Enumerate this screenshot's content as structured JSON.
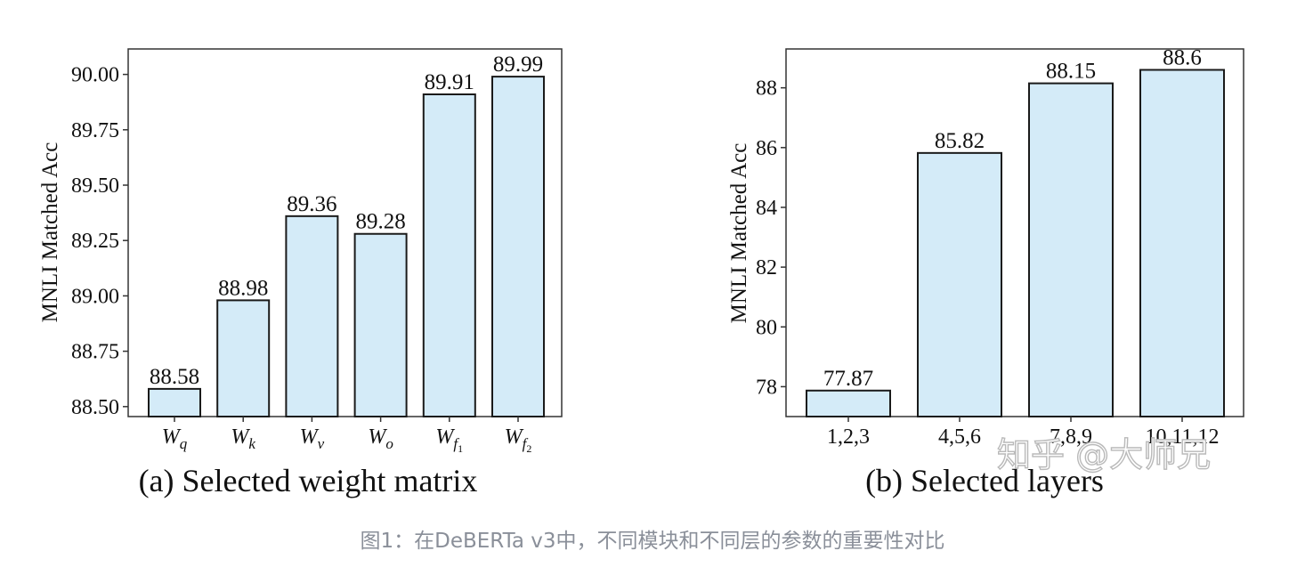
{
  "chart_data": [
    {
      "type": "bar",
      "categories": [
        "W_q",
        "W_k",
        "W_v",
        "W_o",
        "W_f1",
        "W_f2"
      ],
      "category_display": [
        {
          "base": "W",
          "sub": "q"
        },
        {
          "base": "W",
          "sub": "k"
        },
        {
          "base": "W",
          "sub": "v"
        },
        {
          "base": "W",
          "sub": "o"
        },
        {
          "base": "W",
          "sub": "f",
          "subsub": "1"
        },
        {
          "base": "W",
          "sub": "f",
          "subsub": "2"
        }
      ],
      "values": [
        88.58,
        88.98,
        89.36,
        89.28,
        89.91,
        89.99
      ],
      "value_labels": [
        "88.58",
        "88.98",
        "89.36",
        "89.28",
        "89.91",
        "89.99"
      ],
      "ylabel": "MNLI Matched Acc",
      "yticks": [
        "88.50",
        "88.75",
        "89.00",
        "89.25",
        "89.50",
        "89.75",
        "90.00"
      ],
      "ylim": [
        88.455,
        90.115
      ],
      "subcaption": "(a) Selected weight matrix",
      "bar_color": "#d4ebf8",
      "grid": false
    },
    {
      "type": "bar",
      "categories": [
        "1,2,3",
        "4,5,6",
        "7,8,9",
        "10,11,12"
      ],
      "values": [
        77.87,
        85.82,
        88.15,
        88.6
      ],
      "value_labels": [
        "77.87",
        "85.82",
        "88.15",
        "88.6"
      ],
      "ylabel": "MNLI Matched Acc",
      "yticks": [
        "78",
        "80",
        "82",
        "84",
        "86",
        "88"
      ],
      "ylim": [
        77.0,
        89.3
      ],
      "subcaption": "(b) Selected layers",
      "bar_color": "#d4ebf8",
      "grid": false
    }
  ],
  "watermark": "知乎 @大师兄",
  "figure_caption": "图1：在DeBERTa v3中，不同模块和不同层的参数的重要性对比"
}
